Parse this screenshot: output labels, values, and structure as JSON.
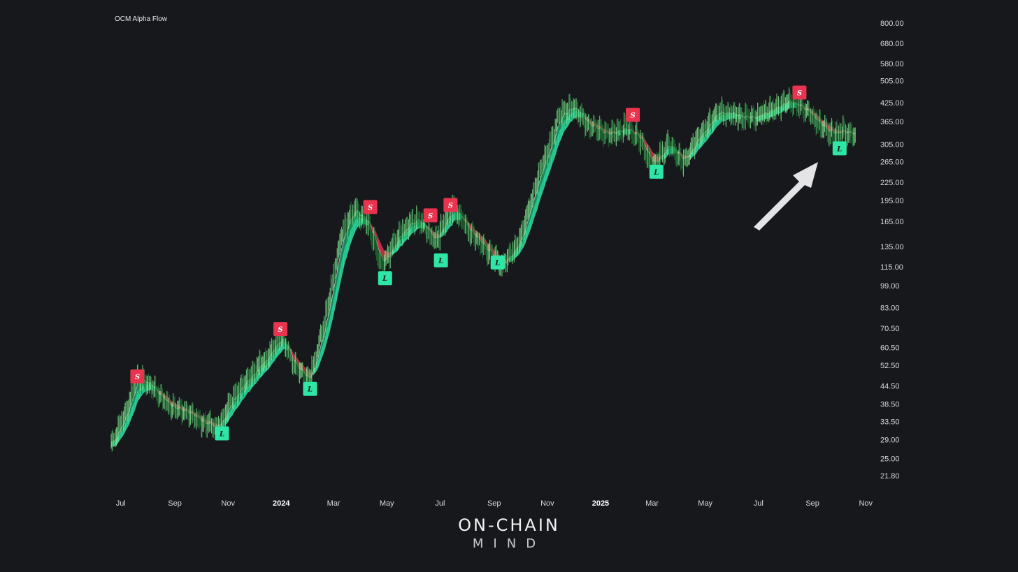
{
  "colors": {
    "background": "#17181c",
    "bull": "#2ee6a6",
    "bull_dark": "#0b4a2c",
    "bear": "#e8344e",
    "text": "#d7d8dc"
  },
  "logo": {
    "line1": "ON-CHAIN",
    "line2": "MIND"
  },
  "annotation": {
    "arrow": "arrow-pointing-to-latest-long-signal"
  },
  "chart_data": {
    "type": "line",
    "title": "OCM Alpha Flow",
    "y_scale": "log",
    "ylim": [
      20.5,
      860
    ],
    "y_ticks": [
      "800.00",
      "680.00",
      "580.00",
      "505.00",
      "425.00",
      "365.00",
      "305.00",
      "265.00",
      "225.00",
      "195.00",
      "165.00",
      "135.00",
      "115.00",
      "99.00",
      "83.00",
      "70.50",
      "60.50",
      "52.50",
      "44.50",
      "38.50",
      "33.50",
      "29.00",
      "25.00",
      "21.80"
    ],
    "x_range": [
      "2023-06-20",
      "2025-11-04"
    ],
    "x_ticks": [
      {
        "label": "Jul",
        "date": "2023-07-01",
        "bold": false
      },
      {
        "label": "Sep",
        "date": "2023-09-01",
        "bold": false
      },
      {
        "label": "Nov",
        "date": "2023-11-01",
        "bold": false
      },
      {
        "label": "2024",
        "date": "2024-01-01",
        "bold": true
      },
      {
        "label": "Mar",
        "date": "2024-03-01",
        "bold": false
      },
      {
        "label": "May",
        "date": "2024-05-01",
        "bold": false
      },
      {
        "label": "Jul",
        "date": "2024-07-01",
        "bold": false
      },
      {
        "label": "Sep",
        "date": "2024-09-01",
        "bold": false
      },
      {
        "label": "Nov",
        "date": "2024-11-01",
        "bold": false
      },
      {
        "label": "2025",
        "date": "2025-01-01",
        "bold": true
      },
      {
        "label": "Mar",
        "date": "2025-03-01",
        "bold": false
      },
      {
        "label": "May",
        "date": "2025-05-01",
        "bold": false
      },
      {
        "label": "Jul",
        "date": "2025-07-01",
        "bold": false
      },
      {
        "label": "Sep",
        "date": "2025-09-01",
        "bold": false
      },
      {
        "label": "Nov",
        "date": "2025-11-01",
        "bold": false
      }
    ],
    "price_path": [
      [
        "2023-06-20",
        28
      ],
      [
        "2023-07-05",
        35
      ],
      [
        "2023-07-20",
        48
      ],
      [
        "2023-08-05",
        44
      ],
      [
        "2023-08-25",
        38
      ],
      [
        "2023-09-15",
        36
      ],
      [
        "2023-10-05",
        33
      ],
      [
        "2023-10-20",
        32
      ],
      [
        "2023-11-05",
        40
      ],
      [
        "2023-11-25",
        48
      ],
      [
        "2023-12-15",
        56
      ],
      [
        "2024-01-01",
        66
      ],
      [
        "2024-01-15",
        53
      ],
      [
        "2024-02-01",
        46
      ],
      [
        "2024-02-20",
        75
      ],
      [
        "2024-03-10",
        150
      ],
      [
        "2024-03-25",
        185
      ],
      [
        "2024-04-10",
        160
      ],
      [
        "2024-04-25",
        115
      ],
      [
        "2024-05-15",
        150
      ],
      [
        "2024-06-05",
        170
      ],
      [
        "2024-06-25",
        140
      ],
      [
        "2024-07-15",
        185
      ],
      [
        "2024-08-05",
        150
      ],
      [
        "2024-08-25",
        130
      ],
      [
        "2024-09-10",
        115
      ],
      [
        "2024-10-01",
        145
      ],
      [
        "2024-10-20",
        230
      ],
      [
        "2024-11-05",
        310
      ],
      [
        "2024-11-15",
        390
      ],
      [
        "2024-12-01",
        410
      ],
      [
        "2024-12-20",
        350
      ],
      [
        "2025-01-10",
        330
      ],
      [
        "2025-01-30",
        345
      ],
      [
        "2025-02-15",
        320
      ],
      [
        "2025-03-01",
        255
      ],
      [
        "2025-03-20",
        310
      ],
      [
        "2025-04-05",
        265
      ],
      [
        "2025-04-25",
        330
      ],
      [
        "2025-05-15",
        395
      ],
      [
        "2025-06-05",
        385
      ],
      [
        "2025-06-25",
        375
      ],
      [
        "2025-07-15",
        400
      ],
      [
        "2025-08-05",
        430
      ],
      [
        "2025-08-25",
        400
      ],
      [
        "2025-09-10",
        355
      ],
      [
        "2025-09-25",
        330
      ],
      [
        "2025-10-10",
        340
      ],
      [
        "2025-10-20",
        325
      ]
    ],
    "signals": [
      {
        "type": "short",
        "label": "S",
        "date": "2023-07-20",
        "price": 48.0
      },
      {
        "type": "long",
        "label": "L",
        "date": "2023-10-25",
        "price": 30.5
      },
      {
        "type": "short",
        "label": "S",
        "date": "2023-12-31",
        "price": 70.0
      },
      {
        "type": "long",
        "label": "L",
        "date": "2024-02-03",
        "price": 43.5
      },
      {
        "type": "short",
        "label": "S",
        "date": "2024-04-12",
        "price": 185
      },
      {
        "type": "long",
        "label": "L",
        "date": "2024-04-29",
        "price": 105
      },
      {
        "type": "short",
        "label": "S",
        "date": "2024-06-20",
        "price": 173
      },
      {
        "type": "long",
        "label": "L",
        "date": "2024-07-02",
        "price": 121
      },
      {
        "type": "short",
        "label": "S",
        "date": "2024-07-13",
        "price": 188
      },
      {
        "type": "long",
        "label": "L",
        "date": "2024-09-05",
        "price": 119
      },
      {
        "type": "short",
        "label": "S",
        "date": "2025-02-07",
        "price": 385
      },
      {
        "type": "long",
        "label": "L",
        "date": "2025-03-06",
        "price": 245
      },
      {
        "type": "short",
        "label": "S",
        "date": "2025-08-17",
        "price": 460
      },
      {
        "type": "long",
        "label": "L",
        "date": "2025-10-02",
        "price": 295
      }
    ]
  }
}
